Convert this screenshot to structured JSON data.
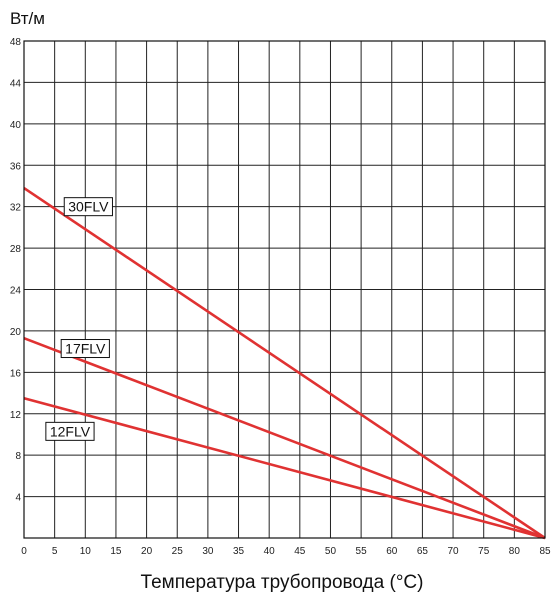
{
  "chart_data": {
    "type": "line",
    "title": "",
    "ylabel": "Вт/м",
    "xlabel": "Температура трубопровода (°C)",
    "xlim": [
      0,
      85
    ],
    "ylim": [
      0,
      48
    ],
    "x_ticks": [
      0,
      5,
      10,
      15,
      20,
      25,
      30,
      35,
      40,
      45,
      50,
      55,
      60,
      65,
      70,
      75,
      80,
      85
    ],
    "y_ticks": [
      4,
      8,
      12,
      16,
      20,
      24,
      28,
      32,
      36,
      40,
      44,
      48
    ],
    "grid": true,
    "line_color": "#e03232",
    "series": [
      {
        "name": "30FLV",
        "x": [
          0,
          85
        ],
        "y": [
          33.8,
          0
        ],
        "label_at": [
          10.5,
          32
        ]
      },
      {
        "name": "17FLV",
        "x": [
          0,
          85
        ],
        "y": [
          19.3,
          0
        ],
        "label_at": [
          10,
          18.3
        ]
      },
      {
        "name": "12FLV",
        "x": [
          0,
          85
        ],
        "y": [
          13.5,
          0
        ],
        "label_at": [
          7.5,
          10.3
        ]
      }
    ]
  }
}
